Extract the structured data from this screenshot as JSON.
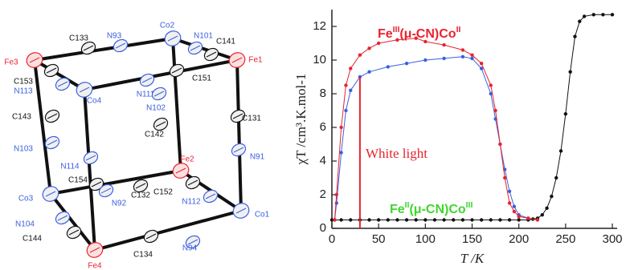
{
  "diagram": {
    "nodes": [
      {
        "label": "Fe3"
      },
      {
        "label": "C133"
      },
      {
        "label": "N93"
      },
      {
        "label": "Co2"
      },
      {
        "label": "N101"
      },
      {
        "label": "C141"
      },
      {
        "label": "Fe1"
      },
      {
        "label": "C153"
      },
      {
        "label": "N113"
      },
      {
        "label": "Co4"
      },
      {
        "label": "N111"
      },
      {
        "label": "C151"
      },
      {
        "label": "N102"
      },
      {
        "label": "C142"
      },
      {
        "label": "C143"
      },
      {
        "label": "C131"
      },
      {
        "label": "N103"
      },
      {
        "label": "Fe2"
      },
      {
        "label": "N91"
      },
      {
        "label": "N114"
      },
      {
        "label": "C154"
      },
      {
        "label": "C132"
      },
      {
        "label": "C152"
      },
      {
        "label": "Co3"
      },
      {
        "label": "N92"
      },
      {
        "label": "N112"
      },
      {
        "label": "Co1"
      },
      {
        "label": "N104"
      },
      {
        "label": "C144"
      },
      {
        "label": "C134"
      },
      {
        "label": "N94"
      },
      {
        "label": "Fe4"
      }
    ]
  },
  "chart_data": {
    "type": "line",
    "xlabel": "T /K",
    "ylabel": "χT /cm³.K.mol-1",
    "xlim": [
      0,
      300
    ],
    "xticks": [
      0,
      50,
      100,
      150,
      200,
      250,
      300
    ],
    "ylim": [
      0,
      13
    ],
    "yticks": [
      0,
      2,
      4,
      6,
      8,
      10,
      12
    ],
    "annotations": [
      {
        "parts": [
          "Fe",
          "III",
          "(μ-CN)Co",
          "II"
        ],
        "color": "#e8232f"
      },
      {
        "parts": [
          "White light"
        ],
        "color": "#e8232f"
      },
      {
        "parts": [
          "Fe",
          "II",
          "(μ-CN)Co",
          "III"
        ],
        "color": "#3fd62f"
      }
    ],
    "series": [
      {
        "color": "#111111",
        "markers": true,
        "x": [
          0,
          10,
          20,
          30,
          40,
          50,
          60,
          70,
          80,
          90,
          100,
          110,
          120,
          130,
          140,
          150,
          160,
          170,
          180,
          190,
          200,
          210,
          215,
          220,
          225,
          230,
          235,
          240,
          245,
          250,
          255,
          260,
          265,
          270,
          280,
          290,
          300
        ],
        "values": [
          0.5,
          0.5,
          0.5,
          0.5,
          0.5,
          0.5,
          0.5,
          0.5,
          0.5,
          0.5,
          0.5,
          0.5,
          0.5,
          0.5,
          0.5,
          0.5,
          0.5,
          0.5,
          0.5,
          0.5,
          0.5,
          0.5,
          0.55,
          0.6,
          0.8,
          1.2,
          1.9,
          3,
          4.6,
          6.8,
          9.3,
          11.4,
          12.3,
          12.6,
          12.7,
          12.7,
          12.7
        ]
      },
      {
        "color": "#3a5fe0",
        "markers": true,
        "x": [
          3,
          5,
          10,
          15,
          20,
          30,
          40,
          60,
          80,
          100,
          120,
          140,
          150,
          160,
          170,
          175,
          180,
          185,
          190,
          195,
          200,
          210
        ],
        "values": [
          0.5,
          1.5,
          4.5,
          7,
          8.2,
          9,
          9.3,
          9.6,
          9.8,
          10,
          10.1,
          10.2,
          10.1,
          9.5,
          8,
          6.5,
          5,
          3.5,
          2.2,
          1.3,
          0.8,
          0.6
        ]
      },
      {
        "color": "#e8232f",
        "markers": true,
        "x": [
          3,
          5,
          10,
          15,
          20,
          30,
          40,
          50,
          70,
          90,
          100,
          120,
          140,
          150,
          160,
          170,
          175,
          180,
          185,
          190,
          195,
          200,
          210,
          220
        ],
        "values": [
          0.5,
          2,
          6,
          8.5,
          9.5,
          10.3,
          10.7,
          11,
          11.2,
          11.3,
          11.1,
          10.9,
          10.6,
          10.3,
          9.8,
          8.5,
          7,
          5,
          3,
          1.5,
          1,
          0.7,
          0.6,
          0.5
        ]
      },
      {
        "color": "#e8232f",
        "markers": false,
        "x": [
          30,
          30
        ],
        "values": [
          0,
          9
        ]
      }
    ]
  }
}
